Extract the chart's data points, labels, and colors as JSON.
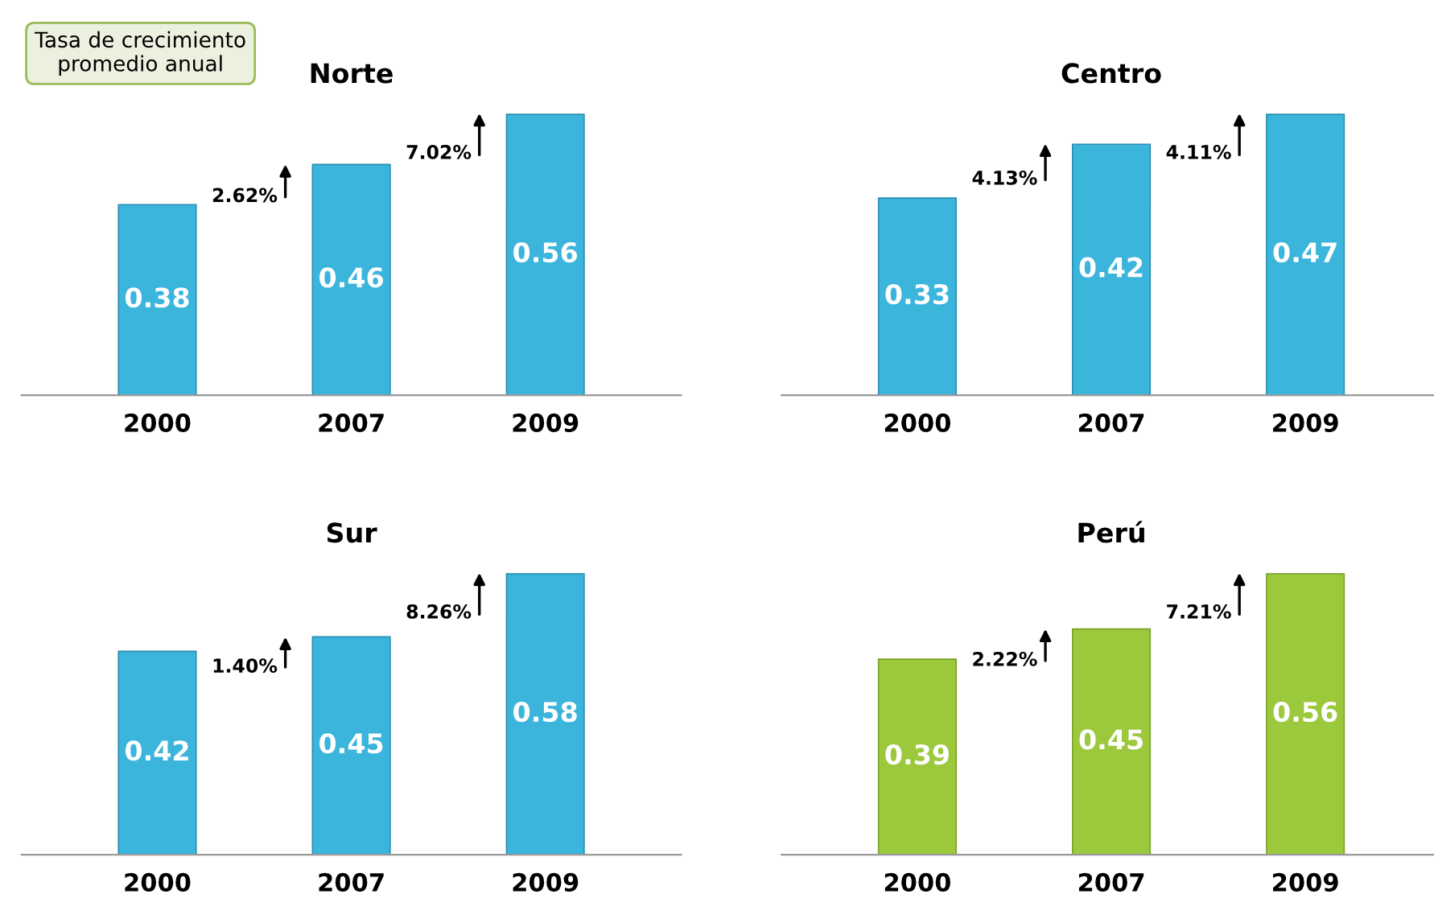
{
  "chart_data": [
    {
      "type": "bar",
      "title": "Norte",
      "categories": [
        "2000",
        "2007",
        "2009"
      ],
      "values": [
        0.38,
        0.46,
        0.56
      ],
      "color": "#3bb5dc",
      "data_labels": true,
      "annotations": [
        "Tasa de crecimiento promedio anual",
        "2.62%",
        "7.02%"
      ]
    },
    {
      "type": "bar",
      "title": "Centro",
      "categories": [
        "2000",
        "2007",
        "2009"
      ],
      "values": [
        0.33,
        0.42,
        0.47
      ],
      "color": "#3bb5dc",
      "data_labels": true,
      "annotations": [
        "4.13%",
        "4.11%"
      ]
    },
    {
      "type": "bar",
      "title": "Sur",
      "categories": [
        "2000",
        "2007",
        "2009"
      ],
      "values": [
        0.42,
        0.45,
        0.58
      ],
      "color": "#3bb5dc",
      "data_labels": true,
      "annotations": [
        "1.40%",
        "8.26%"
      ]
    },
    {
      "type": "bar",
      "title": "Perú",
      "categories": [
        "2000",
        "2007",
        "2009"
      ],
      "values": [
        0.39,
        0.45,
        0.56
      ],
      "color": "#9cc83c",
      "data_labels": true,
      "annotations": [
        "2.22%",
        "7.21%"
      ]
    }
  ]
}
